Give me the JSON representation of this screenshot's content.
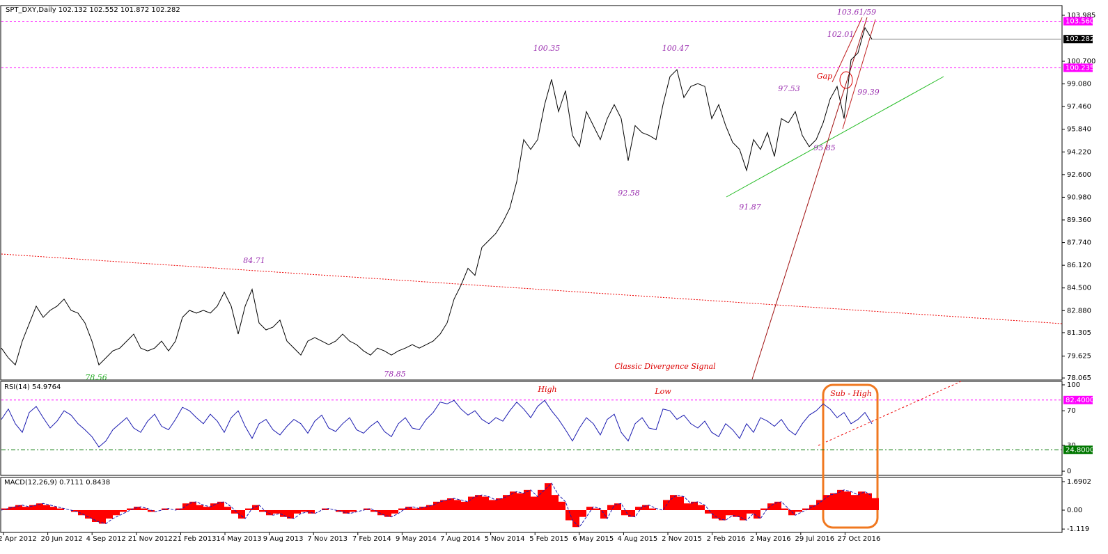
{
  "chart_data": [
    {
      "type": "line",
      "title": "SPT_DXY,Daily  102.132 102.552 101.872 102.282",
      "color": "#000000",
      "values": [
        80.2,
        79.5,
        79.0,
        80.7,
        81.95,
        83.2,
        82.4,
        82.9,
        83.2,
        83.7,
        82.9,
        82.7,
        82.0,
        80.7,
        79.0,
        79.5,
        80.0,
        80.2,
        80.7,
        81.2,
        80.2,
        80.0,
        80.2,
        80.7,
        80.0,
        80.7,
        82.4,
        82.9,
        82.7,
        82.9,
        82.7,
        83.2,
        84.2,
        83.2,
        81.2,
        83.2,
        84.4,
        82.0,
        81.5,
        81.7,
        82.2,
        80.7,
        80.2,
        79.7,
        80.7,
        80.95,
        80.7,
        80.45,
        80.7,
        81.2,
        80.7,
        80.45,
        80.0,
        79.7,
        80.2,
        80.0,
        79.7,
        80.0,
        80.2,
        80.45,
        80.2,
        80.45,
        80.7,
        81.2,
        82.0,
        83.7,
        84.7,
        85.9,
        85.4,
        87.4,
        87.9,
        88.4,
        89.2,
        90.2,
        92.1,
        95.1,
        94.4,
        95.1,
        97.6,
        99.4,
        97.1,
        98.6,
        95.4,
        94.6,
        97.1,
        96.1,
        95.1,
        96.6,
        97.6,
        96.6,
        93.6,
        96.1,
        95.6,
        95.4,
        95.1,
        97.6,
        99.6,
        100.1,
        98.1,
        98.9,
        99.1,
        98.9,
        96.6,
        97.6,
        96.1,
        94.9,
        94.4,
        92.9,
        95.1,
        94.4,
        95.6,
        93.9,
        96.6,
        96.3,
        97.1,
        95.4,
        94.6,
        95.1,
        96.3,
        98.0,
        98.9,
        96.6,
        100.8,
        101.3,
        103.1,
        102.28
      ],
      "ylim": [
        77.92,
        104.68
      ],
      "yticks": [
        103.985,
        {
          "value": 100.7,
          "label": "100.700"
        },
        {
          "value": 99.08,
          "label": "99.080"
        },
        {
          "value": 97.46,
          "label": "97.460"
        },
        {
          "value": 95.84,
          "label": "95.840"
        },
        {
          "value": 94.22,
          "label": "94.220"
        },
        {
          "value": 92.6,
          "label": "92.600"
        },
        {
          "value": 90.98,
          "label": "90.980"
        },
        {
          "value": 89.36,
          "label": "89.360"
        },
        {
          "value": 87.74,
          "label": "87.740"
        },
        {
          "value": 86.12,
          "label": "86.120"
        },
        {
          "value": 84.5,
          "label": "84.500"
        },
        {
          "value": 82.88,
          "label": "82.880"
        },
        81.305,
        79.625,
        78.065
      ],
      "levels": [
        {
          "value": 103.56,
          "label": "103.560",
          "color": "#ff00ff"
        },
        {
          "value": 100.235,
          "label": "100.235",
          "color": "#ff00ff"
        }
      ],
      "last_price": {
        "value": 102.282,
        "label": "102.282",
        "color": "#000000"
      },
      "annotations": [
        {
          "text": "100.35",
          "color": "#9b30b0"
        },
        {
          "text": "100.47",
          "color": "#9b30b0"
        },
        {
          "text": "92.58",
          "color": "#9b30b0"
        },
        {
          "text": "91.87",
          "color": "#9b30b0"
        },
        {
          "text": "97.53",
          "color": "#9b30b0"
        },
        {
          "text": "95.85",
          "color": "#9b30b0"
        },
        {
          "text": "99.39",
          "color": "#9b30b0"
        },
        {
          "text": "102.01",
          "color": "#9b30b0"
        },
        {
          "text": "103.61/59",
          "color": "#9b30b0"
        },
        {
          "text": "Gap",
          "color": "#dd0000"
        },
        {
          "text": "84.71",
          "color": "#9b30b0"
        },
        {
          "text": "78.56",
          "color": "#22aa22"
        },
        {
          "text": "78.85",
          "color": "#9b30b0"
        },
        {
          "text": "Classic  Divergence  Signal",
          "color": "#dd0000"
        }
      ]
    },
    {
      "type": "line",
      "title": "RSI(14) 54.9764",
      "color": "#1a1ab0",
      "values": [
        60,
        72,
        55,
        45,
        68,
        75,
        62,
        50,
        58,
        70,
        65,
        55,
        48,
        40,
        28,
        35,
        48,
        55,
        62,
        50,
        45,
        58,
        66,
        52,
        48,
        60,
        74,
        70,
        62,
        55,
        66,
        58,
        45,
        62,
        70,
        52,
        38,
        55,
        60,
        48,
        42,
        52,
        60,
        55,
        44,
        58,
        65,
        50,
        46,
        55,
        62,
        48,
        44,
        52,
        58,
        46,
        40,
        55,
        62,
        50,
        48,
        60,
        68,
        80,
        78,
        82,
        72,
        65,
        70,
        60,
        55,
        62,
        58,
        70,
        80,
        72,
        62,
        75,
        82,
        70,
        60,
        48,
        35,
        50,
        62,
        55,
        42,
        60,
        66,
        45,
        35,
        55,
        62,
        50,
        48,
        72,
        70,
        60,
        65,
        55,
        50,
        58,
        45,
        40,
        55,
        48,
        38,
        55,
        45,
        62,
        58,
        52,
        60,
        48,
        42,
        55,
        65,
        70,
        78,
        72,
        62,
        68,
        55,
        60,
        68,
        55
      ],
      "ylim": [
        -4.8,
        104
      ],
      "yticks": [
        100,
        70,
        30,
        0
      ],
      "levels": [
        {
          "value": 82.4,
          "label": "82.4000",
          "color": "#ff00ff"
        },
        {
          "value": 24.8,
          "label": "24.8000",
          "color": "#007700"
        }
      ],
      "annotations": [
        {
          "text": "High",
          "color": "#dd0000"
        },
        {
          "text": "Low",
          "color": "#dd0000"
        },
        {
          "text": "Sub - High",
          "color": "#dd0000"
        }
      ]
    },
    {
      "type": "macd",
      "title": "MACD(12,26,9) 0.7111 0.8438",
      "histogram": {
        "color": "#ff0000",
        "values": [
          0.1,
          0.2,
          0.3,
          0.2,
          0.3,
          0.4,
          0.3,
          0.2,
          0.1,
          0.0,
          -0.1,
          -0.3,
          -0.5,
          -0.7,
          -0.8,
          -0.5,
          -0.3,
          -0.1,
          0.1,
          0.2,
          0.1,
          -0.1,
          0.0,
          0.1,
          0.0,
          0.1,
          0.4,
          0.5,
          0.3,
          0.2,
          0.4,
          0.5,
          0.2,
          -0.2,
          -0.5,
          0.1,
          0.3,
          -0.1,
          -0.3,
          -0.2,
          -0.4,
          -0.5,
          -0.2,
          -0.1,
          -0.2,
          0.0,
          0.1,
          0.0,
          -0.1,
          -0.2,
          -0.1,
          0.0,
          0.1,
          -0.1,
          -0.3,
          -0.4,
          -0.2,
          0.1,
          0.2,
          0.1,
          0.2,
          0.3,
          0.5,
          0.6,
          0.7,
          0.6,
          0.5,
          0.8,
          0.9,
          0.8,
          0.6,
          0.7,
          0.9,
          1.1,
          1.0,
          1.2,
          0.8,
          1.2,
          1.6,
          0.9,
          0.5,
          -0.6,
          -1.0,
          -0.4,
          0.2,
          0.1,
          -0.5,
          0.3,
          0.4,
          -0.3,
          -0.4,
          0.2,
          0.3,
          0.1,
          0.0,
          0.6,
          0.9,
          0.8,
          0.4,
          0.5,
          0.3,
          -0.2,
          -0.5,
          -0.6,
          -0.3,
          -0.4,
          -0.6,
          -0.2,
          -0.5,
          0.1,
          0.4,
          0.5,
          0.1,
          -0.3,
          -0.1,
          0.1,
          0.3,
          0.6,
          0.9,
          1.0,
          1.2,
          1.1,
          0.9,
          1.1,
          1.0,
          0.71
        ]
      },
      "signal": {
        "color": "#1a1ab0",
        "values": [
          0.0,
          0.1,
          0.2,
          0.3,
          0.2,
          0.3,
          0.4,
          0.3,
          0.2,
          0.1,
          0.0,
          -0.1,
          -0.3,
          -0.5,
          -0.7,
          -0.8,
          -0.5,
          -0.3,
          -0.1,
          0.1,
          0.2,
          0.1,
          -0.1,
          0.0,
          0.1,
          0.0,
          0.1,
          0.4,
          0.5,
          0.3,
          0.2,
          0.4,
          0.5,
          0.2,
          -0.2,
          -0.5,
          0.1,
          0.3,
          -0.1,
          -0.3,
          -0.2,
          -0.4,
          -0.5,
          -0.2,
          -0.1,
          -0.2,
          0.0,
          0.1,
          0.0,
          -0.1,
          -0.2,
          -0.1,
          0.0,
          0.1,
          -0.1,
          -0.3,
          -0.4,
          -0.2,
          0.1,
          0.2,
          0.1,
          0.2,
          0.3,
          0.5,
          0.6,
          0.7,
          0.6,
          0.5,
          0.8,
          0.9,
          0.8,
          0.6,
          0.7,
          0.9,
          1.1,
          1.0,
          1.2,
          0.8,
          1.2,
          1.6,
          0.9,
          0.5,
          -0.6,
          -1.0,
          -0.4,
          0.2,
          0.1,
          -0.5,
          0.3,
          0.4,
          -0.3,
          -0.4,
          0.2,
          0.3,
          0.1,
          0.0,
          0.6,
          0.9,
          0.8,
          0.4,
          0.5,
          0.3,
          -0.2,
          -0.5,
          -0.6,
          -0.3,
          -0.4,
          -0.6,
          -0.2,
          -0.5,
          0.1,
          0.4,
          0.5,
          0.1,
          -0.3,
          -0.1,
          0.1,
          0.3,
          0.6,
          0.9,
          1.0,
          1.2,
          1.1,
          0.9,
          1.1,
          0.84
        ]
      },
      "ylim": [
        -1.319,
        1.937
      ],
      "yticks": [
        1.6902,
        {
          "value": 0,
          "label": "0.00"
        },
        -1.119
      ],
      "categories": [
        "2 Apr 2012",
        "20 Jun 2012",
        "4 Sep 2012",
        "21 Nov 2012",
        "21 Feb 2013",
        "14 May 2013",
        "9 Aug 2013",
        "7 Nov 2013",
        "7 Feb 2014",
        "9 May 2014",
        "7 Aug 2014",
        "5 Nov 2014",
        "5 Feb 2015",
        "6 May 2015",
        "4 Aug 2015",
        "2 Nov 2015",
        "2 Feb 2016",
        "2 May 2016",
        "29 Jul 2016",
        "27 Oct 2016"
      ]
    }
  ]
}
